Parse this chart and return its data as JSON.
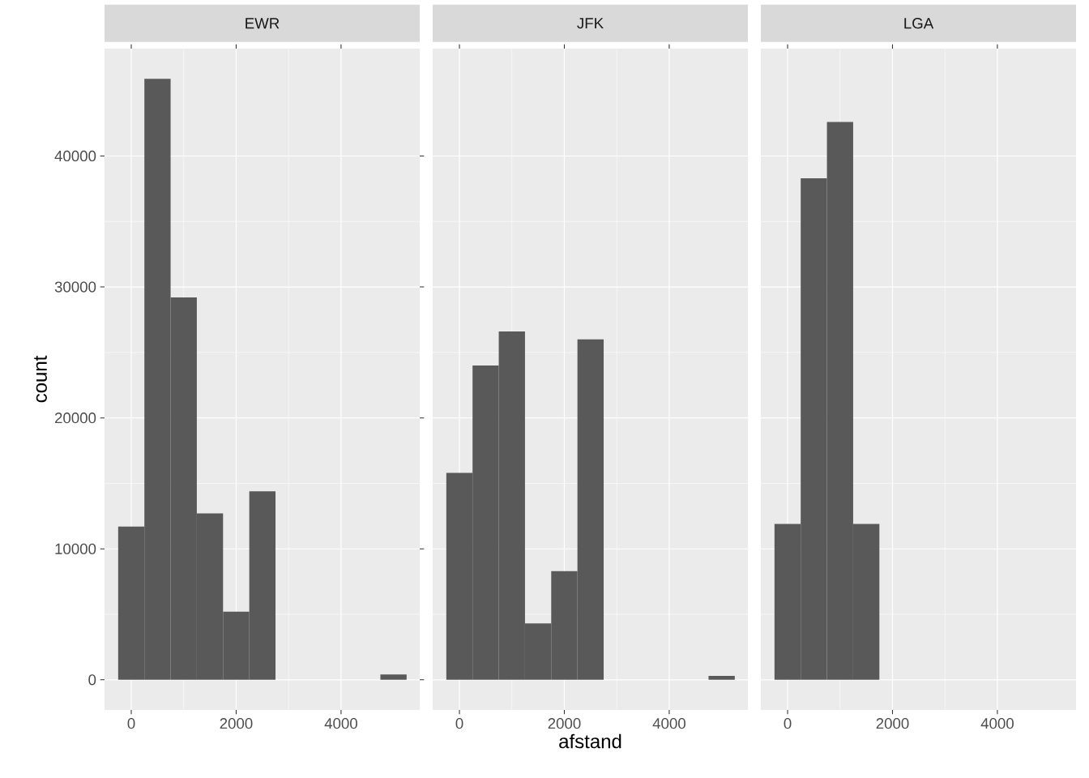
{
  "chart_data": [
    {
      "type": "histogram",
      "title": "EWR",
      "ylabel": "count",
      "bins": [
        -250,
        250,
        750,
        1250,
        1750,
        2250,
        2750,
        3250,
        3750,
        4250,
        4750,
        5250
      ],
      "values": [
        11700,
        45900,
        29200,
        12700,
        5200,
        14400,
        0,
        0,
        0,
        0,
        400
      ],
      "color": "#595959",
      "xlim": [
        -510,
        5500
      ],
      "ylim": [
        -2300,
        48200
      ],
      "xticks": [
        0,
        2000,
        4000
      ],
      "yticks": [
        0,
        10000,
        20000,
        30000,
        40000
      ],
      "grid": true
    },
    {
      "type": "histogram",
      "title": "JFK",
      "xlabel": "afstand",
      "bins": [
        -250,
        250,
        750,
        1250,
        1750,
        2250,
        2750,
        3250,
        3750,
        4250,
        4750,
        5250
      ],
      "values": [
        15800,
        24000,
        26600,
        4300,
        8300,
        26000,
        0,
        0,
        0,
        0,
        300
      ],
      "color": "#595959",
      "xlim": [
        -510,
        5500
      ],
      "ylim": [
        -2300,
        48200
      ],
      "xticks": [
        0,
        2000,
        4000
      ],
      "yticks": [
        0,
        10000,
        20000,
        30000,
        40000
      ],
      "grid": true,
      "tick_labels": "x"
    },
    {
      "type": "histogram",
      "title": "LGA",
      "bins": [
        -250,
        250,
        750,
        1250,
        1750,
        2250,
        2750,
        3250,
        3750,
        4250,
        4750,
        5250
      ],
      "values": [
        11900,
        38300,
        42600,
        11900,
        0,
        0,
        0,
        0,
        0,
        0,
        0
      ],
      "color": "#595959",
      "xlim": [
        -510,
        5500
      ],
      "ylim": [
        -2300,
        48200
      ],
      "xticks": [
        0,
        2000,
        4000
      ],
      "yticks": [
        0,
        10000,
        20000,
        30000,
        40000
      ],
      "grid": true,
      "tick_labels": "x"
    }
  ]
}
